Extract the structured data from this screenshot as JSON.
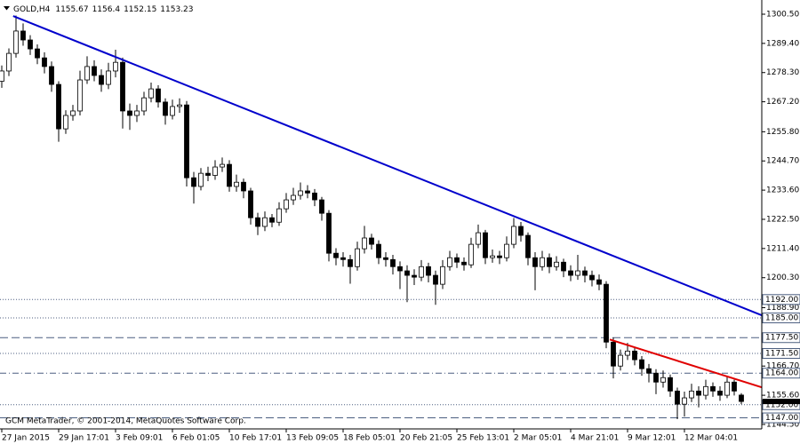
{
  "chart_data": {
    "type": "candlestick",
    "symbol": "GOLD,H4",
    "footer": "GCM MetaTrader, © 2001-2014, MetaQuotes Software Corp.",
    "xlim": [
      -0.25,
      106.875
    ],
    "ylim": [
      1142.8,
      1305.9
    ],
    "yticks": [
      {
        "value": 1300.5,
        "label": "1300.50"
      },
      {
        "value": 1289.4,
        "label": "1289.40"
      },
      {
        "value": 1278.3,
        "label": "1278.30"
      },
      {
        "value": 1267.2,
        "label": "1267.20"
      },
      {
        "value": 1255.8,
        "label": "1255.80"
      },
      {
        "value": 1244.7,
        "label": "1244.70"
      },
      {
        "value": 1233.6,
        "label": "1233.60"
      },
      {
        "value": 1222.5,
        "label": "1222.50"
      },
      {
        "value": 1211.4,
        "label": "1211.40"
      },
      {
        "value": 1200.3,
        "label": "1200.30"
      },
      {
        "value": 1188.9,
        "label": "1188.90"
      },
      {
        "value": 1166.7,
        "label": "1166.70"
      },
      {
        "value": 1155.6,
        "label": "1155.60"
      },
      {
        "value": 1144.5,
        "label": "1144.50"
      }
    ],
    "xticks": [
      {
        "value": 0,
        "label": "27 Jan 2015"
      },
      {
        "value": 8,
        "label": "29 Jan 17:01"
      },
      {
        "value": 16,
        "label": "3 Feb 09:01"
      },
      {
        "value": 24,
        "label": "6 Feb 01:05"
      },
      {
        "value": 32,
        "label": "10 Feb 17:01"
      },
      {
        "value": 40,
        "label": "13 Feb 09:05"
      },
      {
        "value": 48,
        "label": "18 Feb 05:01"
      },
      {
        "value": 56,
        "label": "20 Feb 21:05"
      },
      {
        "value": 64,
        "label": "25 Feb 13:01"
      },
      {
        "value": 72,
        "label": "2 Mar 05:01"
      },
      {
        "value": 80,
        "label": "4 Mar 21:01"
      },
      {
        "value": 88,
        "label": "9 Mar 12:01"
      },
      {
        "value": 96,
        "label": "12 Mar 04:01"
      }
    ],
    "up_color": "#ffffff",
    "down_color": "#000000",
    "wick_color": "#000000",
    "candles": [
      [
        1275.0,
        1281.0,
        1272.5,
        1278.9
      ],
      [
        1278.9,
        1287.5,
        1277.0,
        1285.6
      ],
      [
        1285.6,
        1300.0,
        1284.0,
        1294.1
      ],
      [
        1294.1,
        1297.0,
        1288.5,
        1290.7
      ],
      [
        1290.7,
        1292.5,
        1285.0,
        1287.3
      ],
      [
        1287.3,
        1289.0,
        1281.5,
        1283.9
      ],
      [
        1283.9,
        1286.0,
        1278.0,
        1280.6
      ],
      [
        1280.6,
        1282.5,
        1271.0,
        1273.8
      ],
      [
        1273.8,
        1275.0,
        1252.0,
        1256.9
      ],
      [
        1256.9,
        1264.0,
        1255.0,
        1262.0
      ],
      [
        1262.0,
        1266.0,
        1260.0,
        1263.7
      ],
      [
        1263.7,
        1279.0,
        1262.0,
        1275.5
      ],
      [
        1275.5,
        1284.5,
        1274.0,
        1280.6
      ],
      [
        1280.6,
        1283.0,
        1275.0,
        1277.2
      ],
      [
        1277.2,
        1279.5,
        1271.0,
        1273.8
      ],
      [
        1273.8,
        1282.0,
        1272.0,
        1278.9
      ],
      [
        1278.9,
        1287.0,
        1276.5,
        1282.2
      ],
      [
        1282.2,
        1284.0,
        1257.0,
        1263.7
      ],
      [
        1263.7,
        1266.5,
        1256.5,
        1262.0
      ],
      [
        1262.0,
        1266.0,
        1259.5,
        1263.7
      ],
      [
        1263.7,
        1271.0,
        1262.0,
        1268.7
      ],
      [
        1268.7,
        1274.5,
        1267.0,
        1272.1
      ],
      [
        1272.1,
        1273.5,
        1265.0,
        1267.1
      ],
      [
        1267.1,
        1268.5,
        1258.5,
        1262.0
      ],
      [
        1262.0,
        1268.0,
        1260.5,
        1265.4
      ],
      [
        1265.4,
        1268.5,
        1263.0,
        1266.0
      ],
      [
        1266.0,
        1267.5,
        1235.0,
        1238.3
      ],
      [
        1238.3,
        1240.5,
        1228.5,
        1235.0
      ],
      [
        1235.0,
        1242.0,
        1233.5,
        1240.0
      ],
      [
        1240.0,
        1242.5,
        1237.0,
        1239.2
      ],
      [
        1239.2,
        1245.0,
        1237.5,
        1242.4
      ],
      [
        1242.4,
        1246.0,
        1240.5,
        1243.4
      ],
      [
        1243.4,
        1245.0,
        1233.0,
        1235.0
      ],
      [
        1235.0,
        1239.5,
        1233.0,
        1236.6
      ],
      [
        1236.6,
        1238.0,
        1230.5,
        1233.3
      ],
      [
        1233.3,
        1234.5,
        1220.5,
        1223.1
      ],
      [
        1223.1,
        1225.0,
        1216.5,
        1219.8
      ],
      [
        1219.8,
        1225.5,
        1218.0,
        1223.1
      ],
      [
        1223.1,
        1224.5,
        1219.5,
        1221.4
      ],
      [
        1221.4,
        1229.0,
        1220.0,
        1226.5
      ],
      [
        1226.5,
        1232.5,
        1225.0,
        1229.9
      ],
      [
        1229.9,
        1234.5,
        1228.0,
        1231.6
      ],
      [
        1231.6,
        1236.5,
        1230.0,
        1233.3
      ],
      [
        1233.3,
        1235.5,
        1230.5,
        1232.5
      ],
      [
        1232.5,
        1234.0,
        1227.5,
        1229.9
      ],
      [
        1229.9,
        1231.0,
        1222.0,
        1224.8
      ],
      [
        1224.8,
        1226.0,
        1206.5,
        1209.6
      ],
      [
        1209.6,
        1211.5,
        1205.0,
        1207.9
      ],
      [
        1207.9,
        1210.0,
        1204.5,
        1207.2
      ],
      [
        1207.2,
        1209.0,
        1198.0,
        1204.5
      ],
      [
        1204.5,
        1214.0,
        1203.0,
        1211.3
      ],
      [
        1211.3,
        1220.0,
        1209.5,
        1215.4
      ],
      [
        1215.4,
        1217.0,
        1211.0,
        1213.0
      ],
      [
        1213.0,
        1214.5,
        1205.5,
        1207.9
      ],
      [
        1207.9,
        1210.0,
        1204.5,
        1207.2
      ],
      [
        1207.2,
        1209.0,
        1201.5,
        1204.5
      ],
      [
        1204.5,
        1206.5,
        1196.0,
        1202.9
      ],
      [
        1202.9,
        1205.0,
        1191.0,
        1201.2
      ],
      [
        1201.2,
        1203.5,
        1197.5,
        1200.5
      ],
      [
        1200.5,
        1207.0,
        1199.0,
        1204.5
      ],
      [
        1204.5,
        1206.0,
        1198.5,
        1201.2
      ],
      [
        1201.2,
        1203.0,
        1190.0,
        1197.8
      ],
      [
        1197.8,
        1207.0,
        1196.0,
        1204.5
      ],
      [
        1204.5,
        1210.5,
        1203.0,
        1207.9
      ],
      [
        1207.9,
        1209.5,
        1204.0,
        1206.2
      ],
      [
        1206.2,
        1208.0,
        1203.0,
        1205.2
      ],
      [
        1205.2,
        1215.5,
        1204.0,
        1213.0
      ],
      [
        1213.0,
        1220.5,
        1211.5,
        1217.4
      ],
      [
        1217.4,
        1218.5,
        1205.5,
        1207.9
      ],
      [
        1207.9,
        1211.0,
        1206.0,
        1208.6
      ],
      [
        1208.6,
        1210.5,
        1205.5,
        1207.9
      ],
      [
        1207.9,
        1216.0,
        1206.5,
        1213.0
      ],
      [
        1213.0,
        1223.0,
        1211.5,
        1219.8
      ],
      [
        1219.8,
        1221.5,
        1214.0,
        1216.4
      ],
      [
        1216.4,
        1217.5,
        1205.0,
        1207.9
      ],
      [
        1207.9,
        1210.0,
        1195.5,
        1204.5
      ],
      [
        1204.5,
        1210.5,
        1203.0,
        1207.9
      ],
      [
        1207.9,
        1209.5,
        1202.0,
        1204.5
      ],
      [
        1204.5,
        1208.5,
        1203.0,
        1206.2
      ],
      [
        1206.2,
        1207.5,
        1200.5,
        1202.9
      ],
      [
        1202.9,
        1205.0,
        1199.0,
        1201.2
      ],
      [
        1201.2,
        1209.0,
        1199.5,
        1202.9
      ],
      [
        1202.9,
        1204.5,
        1198.5,
        1201.2
      ],
      [
        1201.2,
        1203.0,
        1197.0,
        1199.5
      ],
      [
        1199.5,
        1201.5,
        1195.5,
        1197.8
      ],
      [
        1197.8,
        1199.0,
        1173.5,
        1175.8
      ],
      [
        1175.8,
        1177.5,
        1162.0,
        1166.7
      ],
      [
        1166.7,
        1173.0,
        1165.0,
        1170.8
      ],
      [
        1170.8,
        1175.5,
        1169.0,
        1172.4
      ],
      [
        1172.4,
        1174.0,
        1167.0,
        1169.1
      ],
      [
        1169.1,
        1170.5,
        1163.0,
        1165.7
      ],
      [
        1165.7,
        1167.5,
        1160.5,
        1164.0
      ],
      [
        1164.0,
        1165.5,
        1156.0,
        1160.6
      ],
      [
        1160.6,
        1165.0,
        1158.5,
        1162.3
      ],
      [
        1162.3,
        1163.5,
        1155.0,
        1157.2
      ],
      [
        1157.2,
        1158.5,
        1146.5,
        1152.2
      ],
      [
        1152.2,
        1157.0,
        1147.5,
        1154.6
      ],
      [
        1154.6,
        1160.0,
        1153.0,
        1157.2
      ],
      [
        1157.2,
        1159.0,
        1151.0,
        1155.6
      ],
      [
        1155.6,
        1161.5,
        1154.0,
        1158.9
      ],
      [
        1158.9,
        1160.5,
        1155.0,
        1157.2
      ],
      [
        1157.2,
        1159.0,
        1153.5,
        1155.6
      ],
      [
        1155.6,
        1163.0,
        1154.5,
        1160.6
      ],
      [
        1160.6,
        1161.5,
        1155.5,
        1157.2
      ],
      [
        1155.67,
        1156.4,
        1152.15,
        1153.23
      ]
    ],
    "trendlines": [
      {
        "color": "#0000cc",
        "x": [
          1.6,
          106.875
        ],
        "y": [
          1299.8,
          1186.0
        ]
      },
      {
        "color": "#e00000",
        "x": [
          85.5,
          106.875
        ],
        "y": [
          1176.8,
          1158.6
        ]
      }
    ],
    "levels": [
      {
        "value": 1192.0,
        "label": "1192.00",
        "style": "dotted"
      },
      {
        "value": 1185.0,
        "label": "1185.00",
        "style": "dotted"
      },
      {
        "value": 1177.5,
        "label": "1177.50",
        "style": "dashed"
      },
      {
        "value": 1171.5,
        "label": "1171.50",
        "style": "dotted"
      },
      {
        "value": 1164.0,
        "label": "1164.00",
        "style": "dashdot"
      },
      {
        "value": 1152.0,
        "label": "1152.00",
        "style": "dotted"
      },
      {
        "value": 1147.0,
        "label": "1147.00",
        "style": "dashed"
      }
    ],
    "level_color": "#4c5f80"
  }
}
